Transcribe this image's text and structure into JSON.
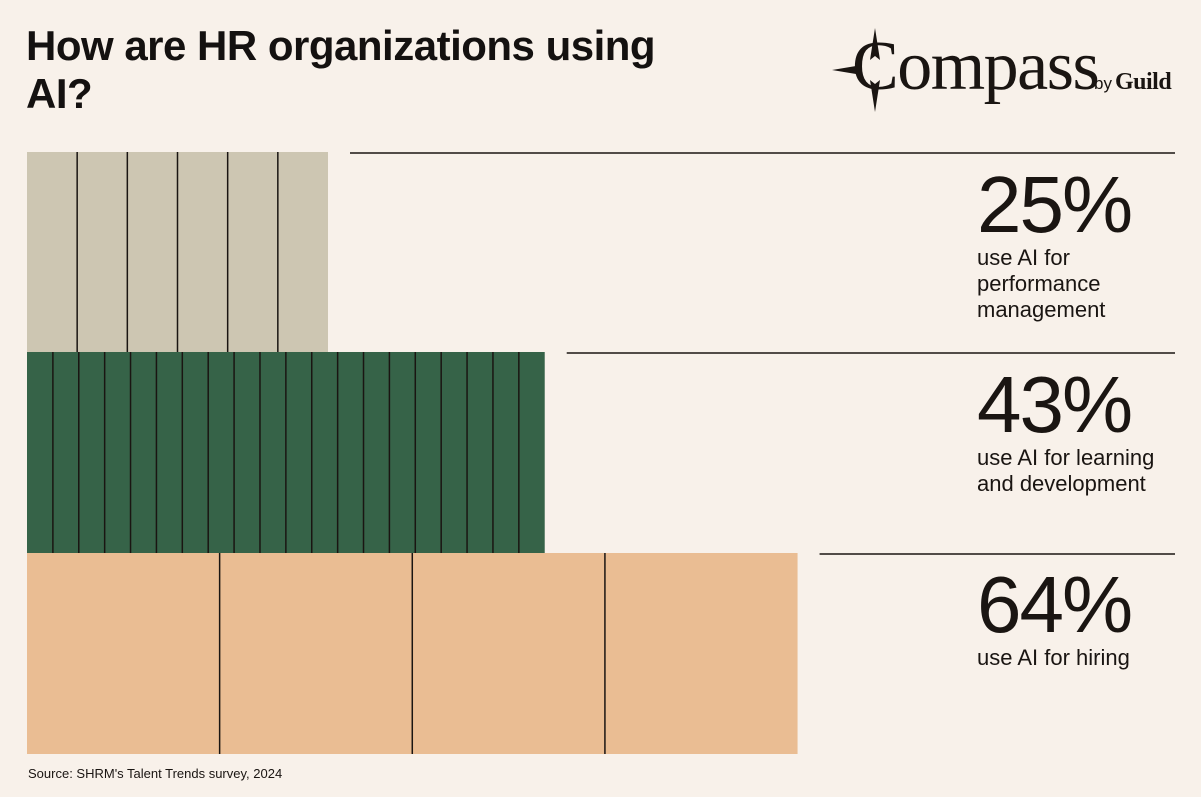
{
  "title": "How are HR organizations using AI?",
  "logo": {
    "wordmark": "Compass",
    "by": "by",
    "brand": "Guild"
  },
  "chart_data": {
    "type": "bar",
    "orientation": "horizontal",
    "categories": [
      "use AI for performance management",
      "use AI for learning and development",
      "use AI for hiring"
    ],
    "values": [
      25,
      43,
      64
    ],
    "value_labels": [
      "25%",
      "43%",
      "64%"
    ],
    "colors": [
      "#cdc6b2",
      "#366348",
      "#eabd93"
    ],
    "stripe_counts": [
      6,
      20,
      4
    ],
    "unit": "%"
  },
  "stats": [
    {
      "value": "25%",
      "label_lines": [
        "use AI for",
        "performance",
        "management"
      ]
    },
    {
      "value": "43%",
      "label_lines": [
        "use AI for learning",
        "and development"
      ]
    },
    {
      "value": "64%",
      "label_lines": [
        "use AI for hiring"
      ]
    }
  ],
  "source": "Source: SHRM's Talent Trends survey, 2024",
  "colors": {
    "background": "#f8f1ea",
    "text": "#1a1512",
    "rule": "#1a1512"
  }
}
